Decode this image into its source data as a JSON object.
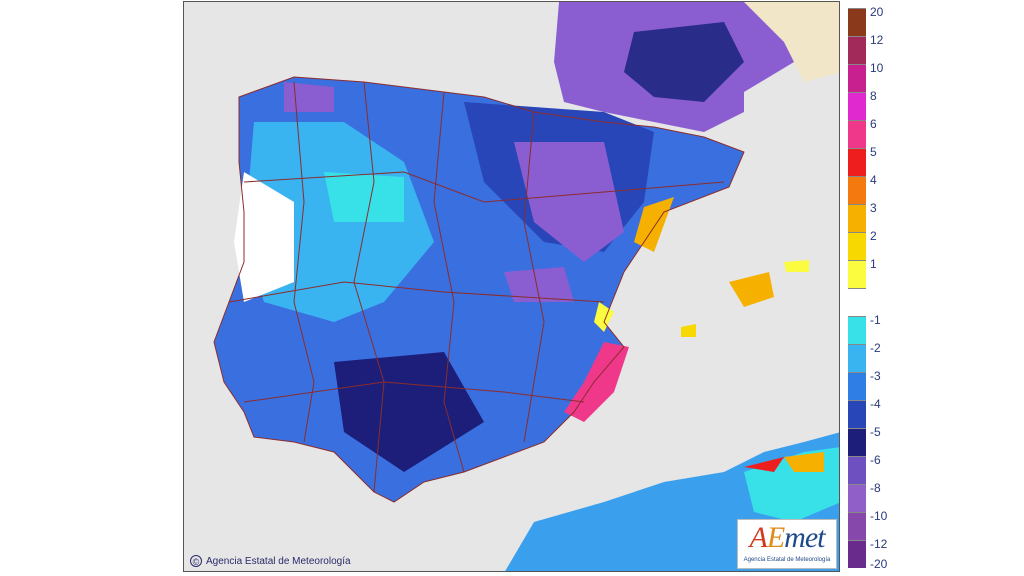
{
  "map": {
    "copyright_symbol": "©",
    "copyright_text": "Agencia Estatal de Meteorología",
    "logo_a": "A",
    "logo_e": "E",
    "logo_rest": "met",
    "logo_subtitle": "Agencia Estatal de Meteorología"
  },
  "legend": {
    "entries": [
      {
        "label": "20",
        "color": "#8a3a1a"
      },
      {
        "label": "12",
        "color": "#a22a5a"
      },
      {
        "label": "10",
        "color": "#c8208e"
      },
      {
        "label": "8",
        "color": "#e02ad0"
      },
      {
        "label": "6",
        "color": "#f0388a"
      },
      {
        "label": "5",
        "color": "#ee1e1e"
      },
      {
        "label": "4",
        "color": "#f47a10"
      },
      {
        "label": "3",
        "color": "#f6b000"
      },
      {
        "label": "2",
        "color": "#f7d800"
      },
      {
        "label": "1",
        "color": "#fbfb40"
      },
      {
        "label": "",
        "color": "#ffffff"
      },
      {
        "label": "-1",
        "color": "#38e0e8"
      },
      {
        "label": "-2",
        "color": "#3ab4f0"
      },
      {
        "label": "-3",
        "color": "#2f7ee6"
      },
      {
        "label": "-4",
        "color": "#2846b8"
      },
      {
        "label": "-5",
        "color": "#1c1e7a"
      },
      {
        "label": "-6",
        "color": "#6e50c0"
      },
      {
        "label": "-8",
        "color": "#9060c8"
      },
      {
        "label": "-10",
        "color": "#8648aa"
      },
      {
        "label": "-12",
        "color": "#6a2c8c"
      },
      {
        "label": "-20",
        "color": "#6a2c8c"
      }
    ]
  }
}
